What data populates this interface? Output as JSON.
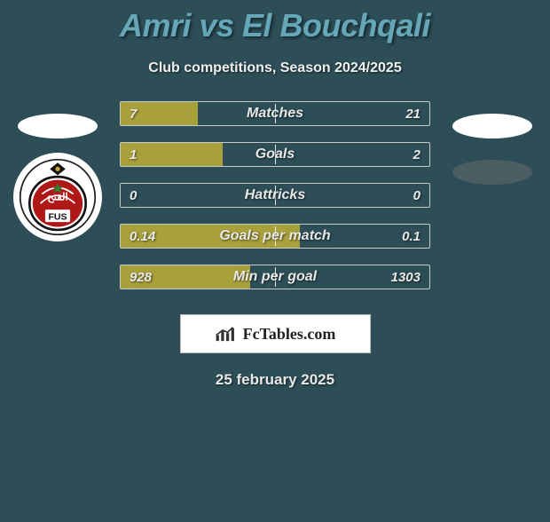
{
  "title": "Amri vs El Bouchqali",
  "subtitle": "Club competitions, Season 2024/2025",
  "date": "25 february 2025",
  "fc_label": "FcTables.com",
  "bar_colors": {
    "fill": "#a8a03a",
    "border": "#c9c9c9",
    "background": "#2d4e57",
    "midline": "#ffffff"
  },
  "stats": [
    {
      "label": "Matches",
      "left_val": "7",
      "right_val": "21",
      "fill_pct": 25,
      "mid_pct": 50
    },
    {
      "label": "Goals",
      "left_val": "1",
      "right_val": "2",
      "fill_pct": 33,
      "mid_pct": 50
    },
    {
      "label": "Hattricks",
      "left_val": "0",
      "right_val": "0",
      "fill_pct": 0,
      "mid_pct": 50
    },
    {
      "label": "Goals per match",
      "left_val": "0.14",
      "right_val": "0.1",
      "fill_pct": 58,
      "mid_pct": 50
    },
    {
      "label": "Min per goal",
      "left_val": "928",
      "right_val": "1303",
      "fill_pct": 42,
      "mid_pct": 50
    }
  ]
}
